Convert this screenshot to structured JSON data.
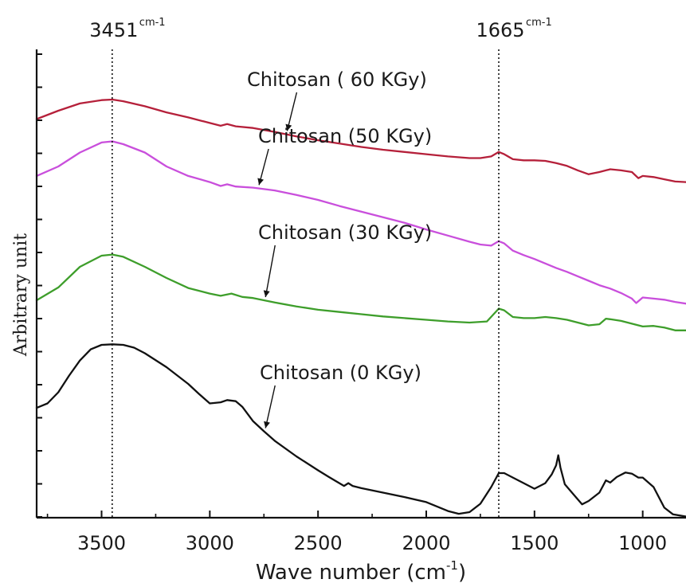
{
  "chart_data": {
    "type": "line",
    "title": "",
    "xlabel": "Wave number (cm",
    "xlabel_sup": "-1",
    "xlabel_suffix": ")",
    "ylabel": "Arbitrary unit",
    "xlim": [
      3800,
      800
    ],
    "ylim": [
      0,
      8.4
    ],
    "x_reversed": true,
    "grid": false,
    "x_ticks": [
      3500,
      3000,
      2500,
      2000,
      1500,
      1000
    ],
    "y_tick_count": 15,
    "y_tick_labels_shown": false,
    "reference_lines": [
      {
        "x": 3451,
        "label": "3451",
        "unit": "cm-1"
      },
      {
        "x": 1665,
        "label": "1665",
        "unit": "cm-1"
      }
    ],
    "series": [
      {
        "name": "Chitosan (  60 KGy)",
        "color": "#b5203a",
        "label_target": 2650,
        "points": [
          [
            3800,
            7.15
          ],
          [
            3700,
            7.3
          ],
          [
            3600,
            7.43
          ],
          [
            3500,
            7.49
          ],
          [
            3450,
            7.5
          ],
          [
            3400,
            7.47
          ],
          [
            3300,
            7.38
          ],
          [
            3200,
            7.27
          ],
          [
            3100,
            7.18
          ],
          [
            3000,
            7.08
          ],
          [
            2950,
            7.03
          ],
          [
            2920,
            7.06
          ],
          [
            2880,
            7.02
          ],
          [
            2800,
            6.99
          ],
          [
            2700,
            6.92
          ],
          [
            2600,
            6.84
          ],
          [
            2500,
            6.77
          ],
          [
            2400,
            6.71
          ],
          [
            2300,
            6.65
          ],
          [
            2200,
            6.6
          ],
          [
            2100,
            6.56
          ],
          [
            2000,
            6.52
          ],
          [
            1900,
            6.48
          ],
          [
            1800,
            6.45
          ],
          [
            1750,
            6.45
          ],
          [
            1700,
            6.48
          ],
          [
            1665,
            6.56
          ],
          [
            1640,
            6.52
          ],
          [
            1600,
            6.43
          ],
          [
            1550,
            6.41
          ],
          [
            1500,
            6.41
          ],
          [
            1450,
            6.4
          ],
          [
            1400,
            6.36
          ],
          [
            1350,
            6.31
          ],
          [
            1300,
            6.23
          ],
          [
            1250,
            6.16
          ],
          [
            1200,
            6.2
          ],
          [
            1150,
            6.25
          ],
          [
            1100,
            6.23
          ],
          [
            1050,
            6.2
          ],
          [
            1020,
            6.09
          ],
          [
            1000,
            6.13
          ],
          [
            950,
            6.11
          ],
          [
            900,
            6.07
          ],
          [
            850,
            6.03
          ],
          [
            800,
            6.02
          ]
        ]
      },
      {
        "name": "Chitosan (50 KGy)",
        "color": "#c94fdc",
        "label_target": 2780,
        "points": [
          [
            3800,
            6.13
          ],
          [
            3700,
            6.3
          ],
          [
            3600,
            6.55
          ],
          [
            3500,
            6.73
          ],
          [
            3450,
            6.75
          ],
          [
            3400,
            6.7
          ],
          [
            3300,
            6.55
          ],
          [
            3200,
            6.3
          ],
          [
            3100,
            6.13
          ],
          [
            3000,
            6.02
          ],
          [
            2950,
            5.95
          ],
          [
            2920,
            5.98
          ],
          [
            2880,
            5.94
          ],
          [
            2800,
            5.92
          ],
          [
            2700,
            5.87
          ],
          [
            2600,
            5.79
          ],
          [
            2500,
            5.7
          ],
          [
            2400,
            5.59
          ],
          [
            2300,
            5.49
          ],
          [
            2200,
            5.39
          ],
          [
            2100,
            5.29
          ],
          [
            2000,
            5.17
          ],
          [
            1900,
            5.06
          ],
          [
            1800,
            4.95
          ],
          [
            1750,
            4.9
          ],
          [
            1700,
            4.88
          ],
          [
            1665,
            4.96
          ],
          [
            1640,
            4.92
          ],
          [
            1600,
            4.79
          ],
          [
            1550,
            4.71
          ],
          [
            1500,
            4.64
          ],
          [
            1450,
            4.56
          ],
          [
            1400,
            4.48
          ],
          [
            1350,
            4.41
          ],
          [
            1300,
            4.33
          ],
          [
            1250,
            4.25
          ],
          [
            1200,
            4.17
          ],
          [
            1150,
            4.11
          ],
          [
            1100,
            4.03
          ],
          [
            1050,
            3.93
          ],
          [
            1030,
            3.85
          ],
          [
            1000,
            3.95
          ],
          [
            950,
            3.93
          ],
          [
            900,
            3.91
          ],
          [
            850,
            3.87
          ],
          [
            800,
            3.84
          ]
        ]
      },
      {
        "name": "Chitosan (30 KGy)",
        "color": "#3e9e2b",
        "label_target": 2750,
        "points": [
          [
            3800,
            3.9
          ],
          [
            3700,
            4.13
          ],
          [
            3600,
            4.5
          ],
          [
            3500,
            4.7
          ],
          [
            3450,
            4.72
          ],
          [
            3400,
            4.68
          ],
          [
            3300,
            4.5
          ],
          [
            3200,
            4.3
          ],
          [
            3100,
            4.12
          ],
          [
            3000,
            4.02
          ],
          [
            2950,
            3.98
          ],
          [
            2900,
            4.02
          ],
          [
            2850,
            3.96
          ],
          [
            2800,
            3.94
          ],
          [
            2700,
            3.86
          ],
          [
            2600,
            3.79
          ],
          [
            2500,
            3.73
          ],
          [
            2400,
            3.69
          ],
          [
            2300,
            3.65
          ],
          [
            2200,
            3.61
          ],
          [
            2100,
            3.58
          ],
          [
            2000,
            3.55
          ],
          [
            1900,
            3.52
          ],
          [
            1800,
            3.5
          ],
          [
            1720,
            3.52
          ],
          [
            1665,
            3.75
          ],
          [
            1640,
            3.72
          ],
          [
            1600,
            3.6
          ],
          [
            1550,
            3.58
          ],
          [
            1500,
            3.58
          ],
          [
            1450,
            3.6
          ],
          [
            1400,
            3.58
          ],
          [
            1350,
            3.55
          ],
          [
            1300,
            3.5
          ],
          [
            1250,
            3.45
          ],
          [
            1200,
            3.47
          ],
          [
            1170,
            3.57
          ],
          [
            1150,
            3.56
          ],
          [
            1100,
            3.53
          ],
          [
            1050,
            3.48
          ],
          [
            1000,
            3.43
          ],
          [
            950,
            3.44
          ],
          [
            900,
            3.41
          ],
          [
            850,
            3.36
          ],
          [
            800,
            3.36
          ]
        ]
      },
      {
        "name": "Chitosan (0 KGy)",
        "color": "#111111",
        "label_target": 2750,
        "points": [
          [
            3800,
            1.97
          ],
          [
            3750,
            2.05
          ],
          [
            3700,
            2.25
          ],
          [
            3650,
            2.55
          ],
          [
            3600,
            2.82
          ],
          [
            3550,
            3.02
          ],
          [
            3500,
            3.1
          ],
          [
            3450,
            3.11
          ],
          [
            3400,
            3.1
          ],
          [
            3350,
            3.05
          ],
          [
            3300,
            2.95
          ],
          [
            3200,
            2.7
          ],
          [
            3100,
            2.4
          ],
          [
            3050,
            2.22
          ],
          [
            3000,
            2.05
          ],
          [
            2950,
            2.07
          ],
          [
            2920,
            2.11
          ],
          [
            2880,
            2.09
          ],
          [
            2850,
            1.99
          ],
          [
            2800,
            1.73
          ],
          [
            2750,
            1.55
          ],
          [
            2700,
            1.38
          ],
          [
            2600,
            1.1
          ],
          [
            2500,
            0.85
          ],
          [
            2450,
            0.73
          ],
          [
            2380,
            0.57
          ],
          [
            2360,
            0.62
          ],
          [
            2340,
            0.57
          ],
          [
            2300,
            0.53
          ],
          [
            2200,
            0.45
          ],
          [
            2100,
            0.37
          ],
          [
            2000,
            0.28
          ],
          [
            1900,
            0.12
          ],
          [
            1850,
            0.07
          ],
          [
            1800,
            0.1
          ],
          [
            1750,
            0.25
          ],
          [
            1700,
            0.55
          ],
          [
            1665,
            0.8
          ],
          [
            1640,
            0.8
          ],
          [
            1600,
            0.72
          ],
          [
            1550,
            0.62
          ],
          [
            1500,
            0.52
          ],
          [
            1450,
            0.62
          ],
          [
            1420,
            0.78
          ],
          [
            1400,
            0.94
          ],
          [
            1390,
            1.12
          ],
          [
            1380,
            0.9
          ],
          [
            1360,
            0.6
          ],
          [
            1320,
            0.42
          ],
          [
            1280,
            0.24
          ],
          [
            1250,
            0.3
          ],
          [
            1200,
            0.45
          ],
          [
            1170,
            0.67
          ],
          [
            1150,
            0.63
          ],
          [
            1120,
            0.73
          ],
          [
            1080,
            0.81
          ],
          [
            1050,
            0.79
          ],
          [
            1020,
            0.72
          ],
          [
            1000,
            0.72
          ],
          [
            950,
            0.55
          ],
          [
            900,
            0.18
          ],
          [
            860,
            0.06
          ],
          [
            800,
            0.02
          ]
        ]
      }
    ]
  }
}
